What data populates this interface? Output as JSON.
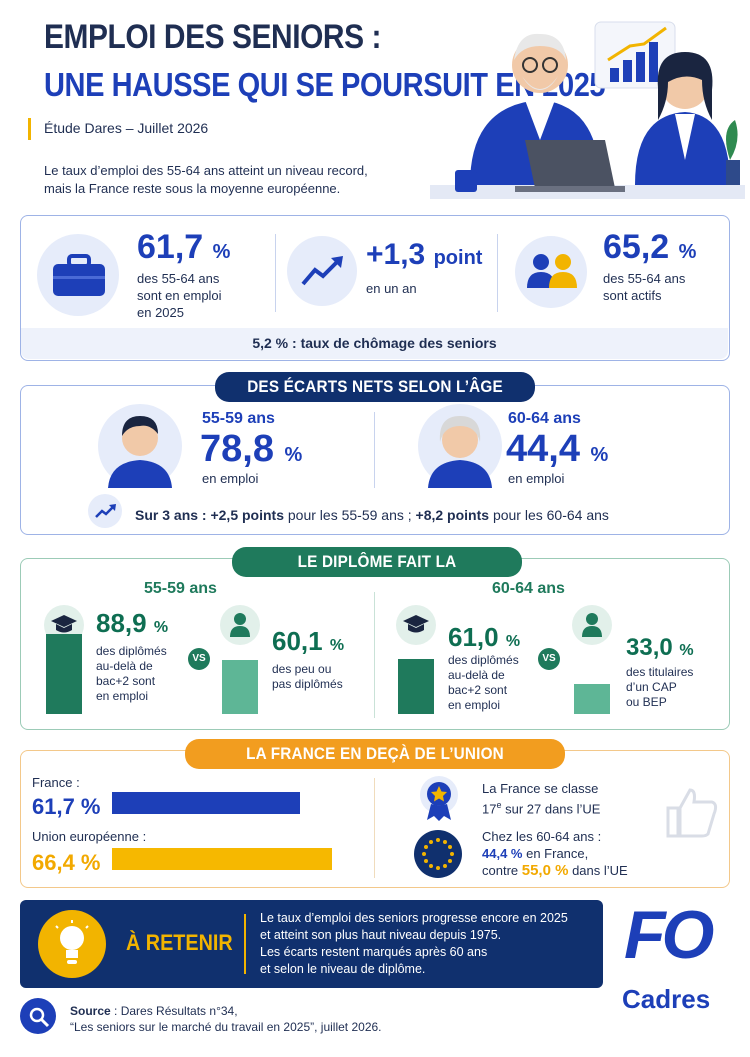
{
  "header": {
    "title_line1": "EMPLOI DES SENIORS :",
    "title_line2": "UNE HAUSSE QUI SE POURSUIT EN 2025",
    "study": "Étude Dares – Juillet 2026",
    "intro_line1": "Le taux d’emploi des 55-64 ans atteint un niveau record,",
    "intro_line2": "mais la France reste sous la moyenne européenne."
  },
  "kpis": {
    "k1_value": "61,7",
    "k1_unit": "%",
    "k1_l1": "des 55-64 ans",
    "k1_l2": "sont en emploi",
    "k1_l3": "en 2025",
    "k2_value": "+1,3",
    "k2_unit": "point",
    "k2_l1": "en un an",
    "k3_value": "65,2",
    "k3_unit": "%",
    "k3_l1": "des 55-64 ans",
    "k3_l2": "sont actifs",
    "unemployment_value": "5,2 %",
    "unemployment_label": " : taux de chômage des seniors"
  },
  "age": {
    "pill": "DES ÉCARTS NETS SELON L’ÂGE",
    "a1_label": "55-59 ans",
    "a1_value": "78,8",
    "a1_unit": "%",
    "a1_sub": "en emploi",
    "a2_label": "60-64 ans",
    "a2_value": "44,4",
    "a2_unit": "%",
    "a2_sub": "en emploi",
    "trend_b1": "Sur 3 ans : ",
    "trend_b2": "+2,5 points",
    "trend_t1": " pour les 55-59 ans ; ",
    "trend_b3": "+8,2 points",
    "trend_t2": " pour les 60-64 ans"
  },
  "diploma": {
    "pill": "LE DIPLÔME FAIT LA DIFFÉRENCE",
    "g1_title": "55-59 ans",
    "g2_title": "60-64 ans",
    "vs": "VS",
    "g1_a_value": "88,9",
    "g1_a_unit": "%",
    "g1_a_l1": "des diplômés",
    "g1_a_l2": "au-delà de",
    "g1_a_l3": "bac+2 sont",
    "g1_a_l4": "en emploi",
    "g1_b_value": "60,1",
    "g1_b_unit": "%",
    "g1_b_l1": "des peu ou",
    "g1_b_l2": "pas diplômés",
    "g2_a_value": "61,0",
    "g2_a_unit": "%",
    "g2_a_l1": "des diplômés",
    "g2_a_l2": "au-delà de",
    "g2_a_l3": "bac+2 sont",
    "g2_a_l4": "en emploi",
    "g2_b_value": "33,0",
    "g2_b_unit": "%",
    "g2_b_l1": "des titulaires",
    "g2_b_l2": "d’un CAP",
    "g2_b_l3": "ou BEP",
    "bar_levels": [
      88.9,
      60.1,
      61.0,
      33.0
    ]
  },
  "europe": {
    "pill": "LA FRANCE EN DEÇÀ DE L’UNION EUROPÉENNE",
    "fr_label": "France :",
    "fr_value": "61,7 %",
    "eu_label": "Union européenne :",
    "eu_value": "66,4 %",
    "bar_levels": [
      61.7,
      66.4
    ],
    "rank_l1": "La France se classe",
    "rank_l2a": "17",
    "rank_l2sup": "e",
    "rank_l2b": " sur 27 dans l’UE",
    "comp_l1": "Chez les 60-64 ans :",
    "comp_l2a": "44,4 %",
    "comp_l2b": " en France,",
    "comp_l3a": "contre ",
    "comp_l3b": "55,0 %",
    "comp_l3c": " dans l’UE"
  },
  "retain": {
    "label": "À RETENIR",
    "l1": "Le taux d’emploi des seniors progresse encore en 2025",
    "l2": "et atteint son plus haut niveau depuis 1975.",
    "l3": "Les écarts restent marqués après 60 ans",
    "l4": "et selon le niveau de diplôme."
  },
  "brand": {
    "l1": "FO",
    "l2": "Cadres"
  },
  "source": {
    "bold": "Source",
    "l1": " : Dares Résultats n°34,",
    "l2": "“Les seniors sur le marché du travail en 2025”, juillet 2026."
  },
  "colors": {
    "blue": "#1d3fb8",
    "navy": "#10306e",
    "green": "#1f7a5c",
    "orange": "#f29d1f",
    "yellow": "#f2b400"
  }
}
